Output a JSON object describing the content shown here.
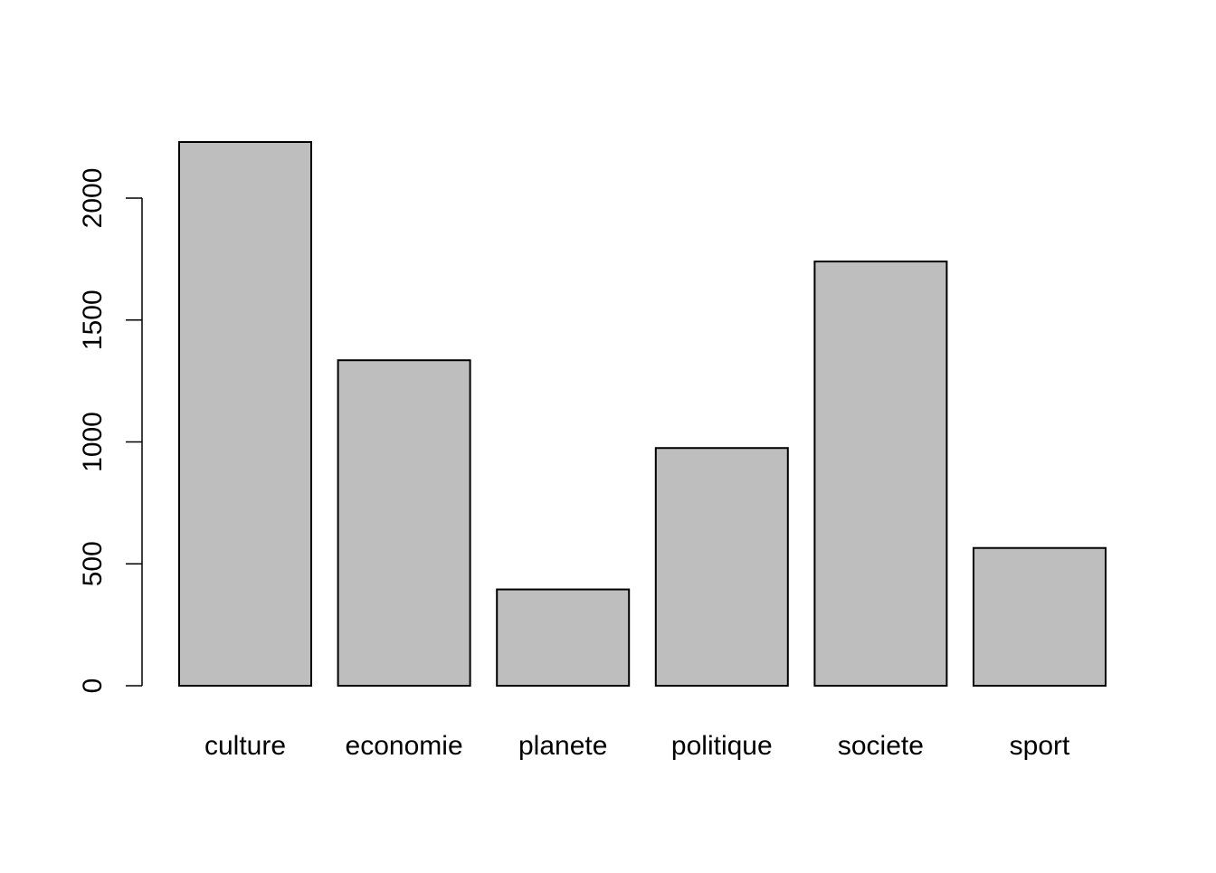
{
  "chart_data": {
    "type": "bar",
    "title": "",
    "xlabel": "",
    "ylabel": "",
    "categories": [
      "culture",
      "economie",
      "planete",
      "politique",
      "societe",
      "sport"
    ],
    "values": [
      2230,
      1335,
      395,
      975,
      1740,
      565
    ],
    "ylim": [
      0,
      2230
    ],
    "yticks": [
      0,
      500,
      1000,
      1500,
      2000
    ],
    "ytick_labels": [
      "0",
      "500",
      "1000",
      "1500",
      "2000"
    ],
    "bar_color": "#bebebe",
    "bar_edge_color": "#000000",
    "grid": false,
    "legend": "none"
  }
}
